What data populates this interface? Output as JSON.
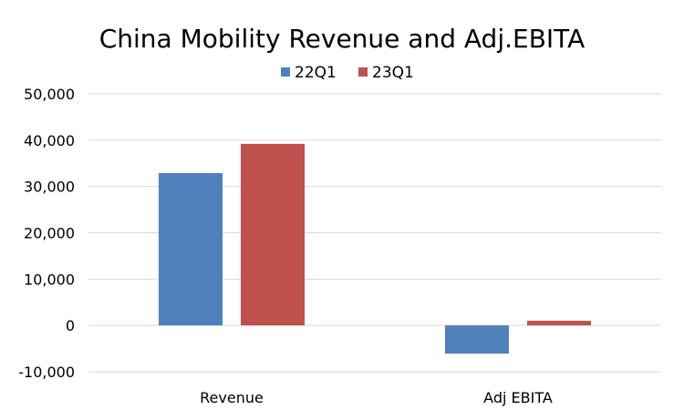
{
  "chart_data": {
    "type": "bar",
    "title": "China Mobility Revenue and Adj.EBITA",
    "categories": [
      "Revenue",
      "Adj EBITA"
    ],
    "series": [
      {
        "name": "22Q1",
        "values": [
          32900,
          -6100
        ],
        "color": "#4F81BD"
      },
      {
        "name": "23Q1",
        "values": [
          39200,
          1000
        ],
        "color": "#C0504D"
      }
    ],
    "ylim": [
      -10000,
      50000
    ],
    "yticks": [
      50000,
      40000,
      30000,
      20000,
      10000,
      0,
      -10000
    ],
    "ytick_labels": [
      "50,000",
      "40,000",
      "30,000",
      "20,000",
      "10,000",
      "0",
      "-10,000"
    ],
    "grid": true,
    "legend_position": "top-center",
    "gridline_color": "#D9D9D9"
  }
}
